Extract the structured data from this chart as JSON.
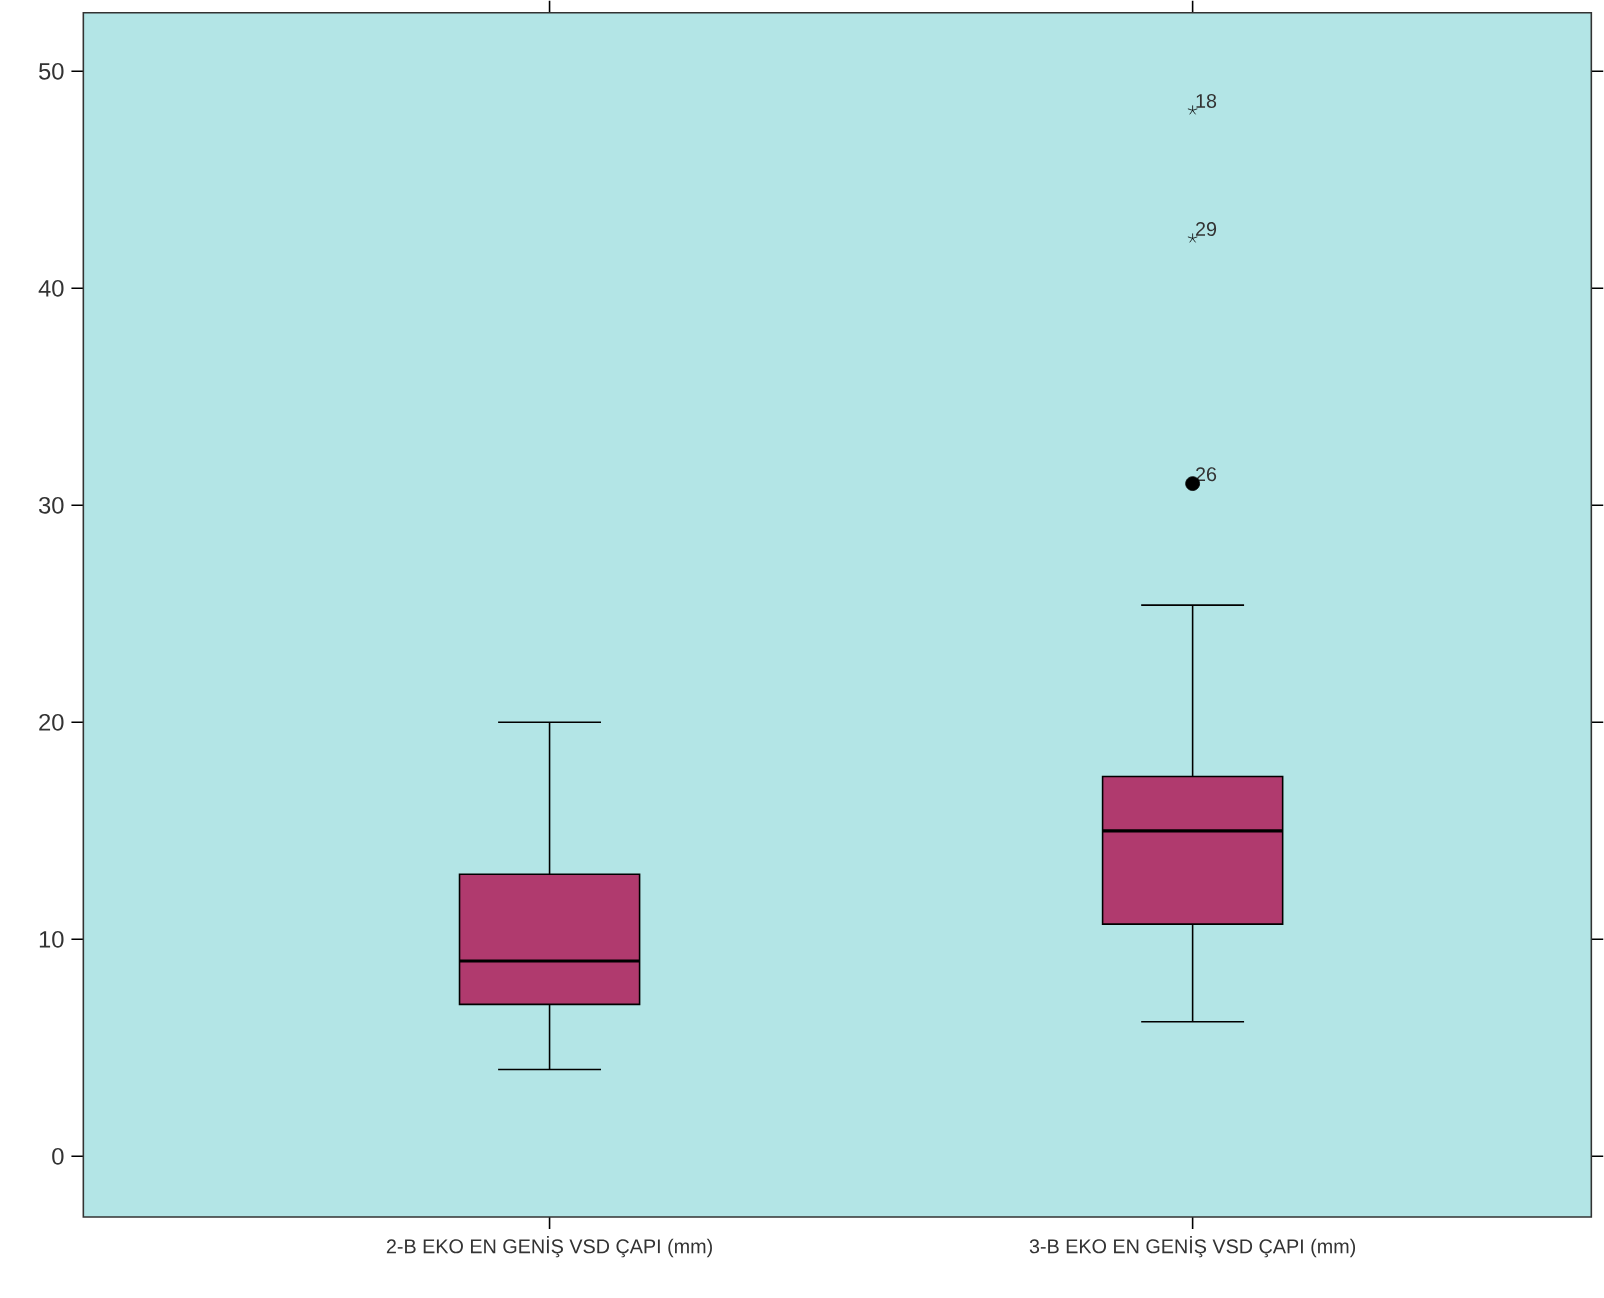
{
  "chart_data": {
    "type": "box",
    "categories": [
      "2-B EKO  EN GENİŞ  VSD  ÇAPI (mm)",
      "3-B EKO EN GENİŞ VSD ÇAPI (mm)"
    ],
    "color": "#b03a6e",
    "boxes": [
      {
        "low": 4,
        "q1": 7,
        "median": 9,
        "q3": 13,
        "high": 20
      },
      {
        "low": 6.2,
        "q1": 10.7,
        "median": 15,
        "q3": 17.5,
        "high": 25.4,
        "outliers": [
          31,
          42.3,
          48.2
        ]
      }
    ],
    "ylim": [
      -2.8,
      52.7
    ],
    "yticks": [
      0,
      10,
      20,
      30,
      40,
      50
    ],
    "grid": false,
    "annotations": [
      "26",
      "29",
      "18"
    ]
  }
}
